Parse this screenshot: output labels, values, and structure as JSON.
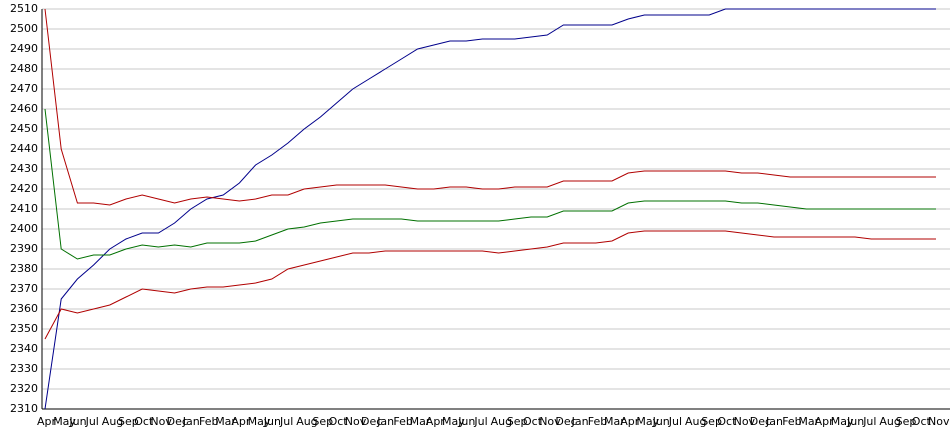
{
  "chart_data": {
    "type": "line",
    "categories": [
      "Apr",
      "May",
      "Jun",
      "Jul",
      "Aug",
      "Sep",
      "Oct",
      "Nov",
      "Dec",
      "Jan",
      "Feb",
      "Mar",
      "Apr",
      "May",
      "Jun",
      "Jul",
      "Aug",
      "Sep",
      "Oct",
      "Nov",
      "Dec",
      "Jan",
      "Feb",
      "Mar",
      "Apr",
      "May",
      "Jun",
      "Jul",
      "Aug",
      "Sep",
      "Oct",
      "Nov",
      "Dec",
      "Jan",
      "Feb",
      "Mar",
      "Apr",
      "May",
      "Jun",
      "Jul",
      "Aug",
      "Sep",
      "Oct",
      "Nov",
      "Dec",
      "Jan",
      "Feb",
      "Mar",
      "Apr",
      "May",
      "Jun",
      "Jul",
      "Aug",
      "Sep",
      "Oct",
      "Nov"
    ],
    "series": [
      {
        "color": "#00008b",
        "values": [
          2310,
          2365,
          2375,
          2382,
          2390,
          2395,
          2398,
          2398,
          2403,
          2410,
          2415,
          2417,
          2423,
          2432,
          2437,
          2443,
          2450,
          2456,
          2463,
          2470,
          2475,
          2480,
          2485,
          2490,
          2492,
          2494,
          2494,
          2495,
          2495,
          2495,
          2496,
          2497,
          2502,
          2502,
          2502,
          2502,
          2505,
          2507,
          2507,
          2507,
          2507,
          2507,
          2510,
          2510,
          2510,
          2510,
          2510,
          2510,
          2510,
          2510,
          2510,
          2510,
          2510,
          2510,
          2510,
          2510
        ]
      },
      {
        "color": "#b00000",
        "values": [
          2510,
          2440,
          2413,
          2413,
          2412,
          2415,
          2417,
          2415,
          2413,
          2415,
          2416,
          2415,
          2414,
          2415,
          2417,
          2417,
          2420,
          2421,
          2422,
          2422,
          2422,
          2422,
          2421,
          2420,
          2420,
          2421,
          2421,
          2420,
          2420,
          2421,
          2421,
          2421,
          2424,
          2424,
          2424,
          2424,
          2428,
          2429,
          2429,
          2429,
          2429,
          2429,
          2429,
          2428,
          2428,
          2427,
          2426,
          2426,
          2426,
          2426,
          2426,
          2426,
          2426,
          2426,
          2426,
          2426
        ]
      },
      {
        "color": "#007000",
        "values": [
          2460,
          2390,
          2385,
          2387,
          2387,
          2390,
          2392,
          2391,
          2392,
          2391,
          2393,
          2393,
          2393,
          2394,
          2397,
          2400,
          2401,
          2403,
          2404,
          2405,
          2405,
          2405,
          2405,
          2404,
          2404,
          2404,
          2404,
          2404,
          2404,
          2405,
          2406,
          2406,
          2409,
          2409,
          2409,
          2409,
          2413,
          2414,
          2414,
          2414,
          2414,
          2414,
          2414,
          2413,
          2413,
          2412,
          2411,
          2410,
          2410,
          2410,
          2410,
          2410,
          2410,
          2410,
          2410,
          2410
        ]
      },
      {
        "color": "#b00000",
        "values": [
          2345,
          2360,
          2358,
          2360,
          2362,
          2366,
          2370,
          2369,
          2368,
          2370,
          2371,
          2371,
          2372,
          2373,
          2375,
          2380,
          2382,
          2384,
          2386,
          2388,
          2388,
          2389,
          2389,
          2389,
          2389,
          2389,
          2389,
          2389,
          2388,
          2389,
          2390,
          2391,
          2393,
          2393,
          2393,
          2394,
          2398,
          2399,
          2399,
          2399,
          2399,
          2399,
          2399,
          2398,
          2397,
          2396,
          2396,
          2396,
          2396,
          2396,
          2396,
          2395,
          2395,
          2395,
          2395,
          2395
        ]
      }
    ],
    "ylim": [
      2310,
      2510
    ],
    "yticks": [
      2310,
      2320,
      2330,
      2340,
      2350,
      2360,
      2370,
      2380,
      2390,
      2400,
      2410,
      2420,
      2430,
      2440,
      2450,
      2460,
      2470,
      2480,
      2490,
      2500,
      2510
    ],
    "grid": true
  }
}
